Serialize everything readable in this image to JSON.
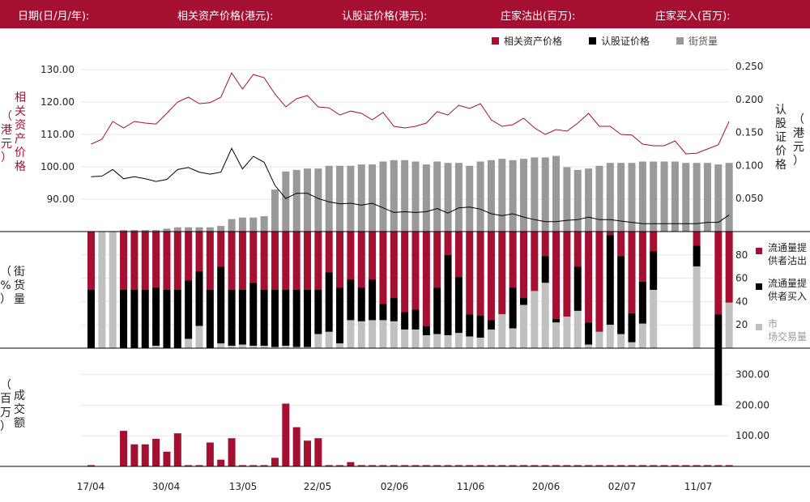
{
  "header": {
    "date_label": "日期(日/月/年):",
    "underlying_label": "相关资产价格(港元):",
    "warrant_label": "认股证价格(港元):",
    "lp_sell_label": "庄家沽出(百万):",
    "lp_buy_label": "庄家买入(百万):"
  },
  "colors": {
    "header_bg": "#a50f32",
    "red": "#a50f32",
    "black": "#000000",
    "gray": "#999999",
    "lightgray": "#c0c0c0"
  },
  "chart_data": [
    {
      "type": "line",
      "panel": "price",
      "legend": [
        {
          "name": "相关资产价格",
          "color": "#a50f32"
        },
        {
          "name": "认股证价格",
          "color": "#000000"
        },
        {
          "name": "街货量",
          "color": "#999999"
        }
      ],
      "left_axis": {
        "label": "相关资产价格（港元）",
        "ticks": [
          "90.00",
          "100.00",
          "110.00",
          "120.00",
          "130.00"
        ],
        "ylim": [
          80,
          134
        ]
      },
      "right_axis": {
        "label": "认股证价格（港元）",
        "ticks": [
          "0.050",
          "0.100",
          "0.150",
          "0.200",
          "0.250"
        ],
        "ylim": [
          0,
          0.265
        ]
      },
      "x_ticks": [
        "17/04",
        "30/04",
        "13/05",
        "22/05",
        "02/06",
        "11/06",
        "20/06",
        "02/07",
        "11/07"
      ],
      "underlying_price": [
        107.0,
        108.5,
        114.0,
        112.0,
        114.0,
        113.5,
        113.2,
        116.5,
        120.0,
        121.5,
        119.5,
        119.8,
        121.5,
        129.0,
        124.0,
        128.5,
        127.5,
        122.5,
        118.5,
        121.0,
        122.0,
        118.5,
        118.2,
        116.0,
        117.2,
        116.5,
        114.5,
        116.8,
        112.5,
        112.0,
        112.5,
        113.5,
        117.0,
        116.0,
        119.0,
        118.0,
        119.5,
        114.5,
        112.5,
        113.0,
        115.0,
        112.0,
        110.0,
        111.5,
        111.0,
        113.5,
        116.5,
        112.5,
        112.5,
        110.0,
        109.8,
        107.0,
        106.5,
        106.5,
        108.0,
        104.0,
        104.2,
        105.5,
        106.8,
        114.0
      ],
      "warrant_price": [
        0.083,
        0.084,
        0.094,
        0.08,
        0.083,
        0.08,
        0.076,
        0.079,
        0.094,
        0.097,
        0.09,
        0.087,
        0.09,
        0.126,
        0.095,
        0.114,
        0.105,
        0.07,
        0.05,
        0.058,
        0.058,
        0.05,
        0.045,
        0.042,
        0.043,
        0.04,
        0.043,
        0.036,
        0.029,
        0.03,
        0.029,
        0.03,
        0.035,
        0.028,
        0.036,
        0.037,
        0.034,
        0.027,
        0.024,
        0.027,
        0.022,
        0.018,
        0.015,
        0.015,
        0.017,
        0.018,
        0.022,
        0.018,
        0.018,
        0.016,
        0.014,
        0.012,
        0.012,
        0.012,
        0.012,
        0.012,
        0.012,
        0.014,
        0.014,
        0.025
      ]
    },
    {
      "type": "bar",
      "panel": "outstanding",
      "series": [
        {
          "name": "街货量",
          "color": "#999999"
        }
      ],
      "values": [
        0,
        0,
        0,
        0.9,
        0.9,
        0.9,
        0.9,
        1.7,
        2.5,
        2.5,
        2.5,
        2.5,
        3.3,
        7.3,
        8.2,
        8.2,
        9.0,
        24.6,
        35.2,
        36.1,
        36.9,
        36.9,
        38.5,
        38.5,
        38.5,
        39.3,
        39.3,
        41.0,
        41.8,
        41.8,
        41.0,
        39.3,
        41.0,
        40.2,
        40.2,
        38.5,
        41.0,
        41.8,
        42.6,
        41.8,
        42.6,
        43.4,
        43.4,
        44.3,
        37.7,
        36.1,
        36.9,
        38.5,
        40.2,
        40.2,
        40.2,
        41.0,
        41.0,
        41.0,
        41.0,
        40.2,
        40.2,
        40.2,
        39.3,
        40.2
      ]
    },
    {
      "type": "bar",
      "panel": "liquidity",
      "axis": {
        "label": "街货量（%）",
        "ticks": [
          "20",
          "40",
          "60",
          "80"
        ],
        "ylim": [
          0,
          100
        ]
      },
      "legend": [
        {
          "name": "流通量提供者沽出",
          "color": "#a50f32"
        },
        {
          "name": "流通量提供者买入",
          "color": "#000000"
        },
        {
          "name": "市场交易量",
          "color": "#c0c0c0"
        }
      ],
      "bars": [
        [
          50,
          50,
          0
        ],
        [
          0,
          0,
          100
        ],
        [
          0,
          0,
          100
        ],
        [
          50,
          50,
          0
        ],
        [
          50,
          50,
          0
        ],
        [
          50,
          50,
          0
        ],
        [
          48,
          50,
          2
        ],
        [
          50,
          50,
          0
        ],
        [
          50,
          50,
          0
        ],
        [
          42,
          50,
          8
        ],
        [
          34,
          47,
          19
        ],
        [
          50,
          50,
          0
        ],
        [
          30,
          66,
          4
        ],
        [
          50,
          48,
          2
        ],
        [
          50,
          47,
          3
        ],
        [
          44,
          54,
          2
        ],
        [
          50,
          48,
          2
        ],
        [
          50,
          49,
          1
        ],
        [
          50,
          48,
          2
        ],
        [
          50,
          49,
          1
        ],
        [
          50,
          49,
          1
        ],
        [
          50,
          38,
          12
        ],
        [
          35,
          51,
          14
        ],
        [
          48,
          48,
          4
        ],
        [
          41,
          35,
          24
        ],
        [
          48,
          29,
          23
        ],
        [
          41,
          35,
          24
        ],
        [
          62,
          14,
          24
        ],
        [
          57,
          20,
          23
        ],
        [
          69,
          15,
          16
        ],
        [
          67,
          17,
          16
        ],
        [
          81,
          8,
          11
        ],
        [
          48,
          40,
          12
        ],
        [
          20,
          69,
          11
        ],
        [
          39,
          48,
          13
        ],
        [
          71,
          19,
          10
        ],
        [
          72,
          19,
          9
        ],
        [
          76,
          8,
          16
        ],
        [
          71,
          0,
          29
        ],
        [
          48,
          35,
          17
        ],
        [
          57,
          6,
          37
        ],
        [
          51,
          0,
          49
        ],
        [
          21,
          23,
          56
        ],
        [
          75,
          3,
          22
        ],
        [
          73,
          0,
          27
        ],
        [
          30,
          38,
          32
        ],
        [
          78,
          19,
          3
        ],
        [
          86,
          0,
          14
        ],
        [
          3,
          77,
          20
        ],
        [
          21,
          67,
          12
        ],
        [
          70,
          25,
          5
        ],
        [
          43,
          36,
          21
        ],
        [
          17,
          33,
          50
        ],
        [
          0,
          0,
          0
        ],
        [
          0,
          0,
          0
        ],
        [
          0,
          0,
          0
        ],
        [
          12,
          18,
          70
        ],
        [
          0,
          0,
          0
        ],
        [
          71,
          78,
          0
        ],
        [
          61,
          0,
          39
        ]
      ]
    },
    {
      "type": "bar",
      "panel": "turnover",
      "axis": {
        "label": "成交额（百万）",
        "ticks": [
          "100.00",
          "200.00",
          "300.00"
        ],
        "ylim": [
          0,
          320
        ]
      },
      "series": [
        {
          "name": "成交额",
          "color": "#a50f32"
        }
      ],
      "values": [
        4,
        0,
        0,
        116,
        72,
        72,
        90,
        48,
        108,
        4,
        4,
        78,
        22,
        92,
        4,
        4,
        4,
        28,
        205,
        128,
        84,
        92,
        4,
        4,
        14,
        4,
        4,
        4,
        4,
        4,
        4,
        4,
        4,
        4,
        4,
        4,
        4,
        4,
        4,
        4,
        4,
        4,
        4,
        4,
        4,
        4,
        4,
        4,
        4,
        4,
        4,
        4,
        4,
        4,
        4,
        4,
        4,
        4,
        4,
        4
      ]
    }
  ]
}
